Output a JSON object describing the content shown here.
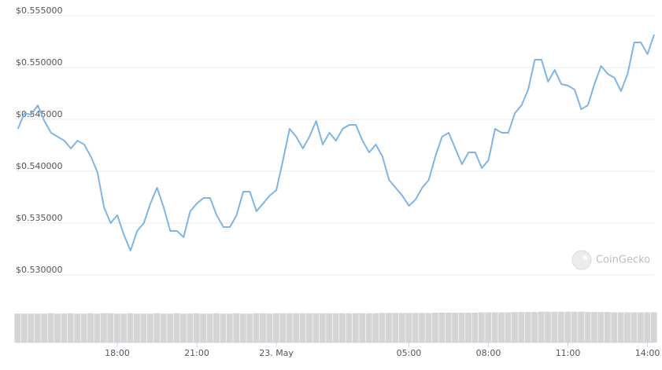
{
  "chart_data": {
    "type": "line",
    "x": [
      "14:15",
      "14:30",
      "14:45",
      "15:00",
      "15:15",
      "15:30",
      "15:45",
      "16:00",
      "16:15",
      "16:30",
      "16:45",
      "17:00",
      "17:15",
      "17:30",
      "17:45",
      "18:00",
      "18:15",
      "18:30",
      "18:45",
      "19:00",
      "19:15",
      "19:30",
      "19:45",
      "20:00",
      "20:15",
      "20:30",
      "20:45",
      "21:00",
      "21:15",
      "21:30",
      "21:45",
      "22:00",
      "22:15",
      "22:30",
      "22:45",
      "23:00",
      "23:15",
      "23:30",
      "23:45",
      "00:00",
      "00:15",
      "00:30",
      "00:45",
      "01:00",
      "01:15",
      "01:30",
      "01:45",
      "02:00",
      "02:15",
      "02:30",
      "02:45",
      "03:00",
      "03:15",
      "03:30",
      "03:45",
      "04:00",
      "04:15",
      "04:30",
      "04:45",
      "05:00",
      "05:15",
      "05:30",
      "05:45",
      "06:00",
      "06:15",
      "06:30",
      "06:45",
      "07:00",
      "07:15",
      "07:30",
      "07:45",
      "08:00",
      "08:15",
      "08:30",
      "08:45",
      "09:00",
      "09:15",
      "09:30",
      "09:45",
      "10:00",
      "10:15",
      "10:30",
      "10:45",
      "11:00",
      "11:15",
      "11:30",
      "11:45",
      "12:00",
      "12:15",
      "12:30",
      "12:45",
      "13:00",
      "13:15",
      "13:30",
      "13:45",
      "14:00",
      "14:15"
    ],
    "series": [
      {
        "color": "#7fb5e6",
        "values": [
          0.54409,
          0.54561,
          0.54545,
          0.54636,
          0.54485,
          0.54371,
          0.54333,
          0.54295,
          0.5422,
          0.54295,
          0.54258,
          0.54144,
          0.53992,
          0.53652,
          0.535,
          0.53576,
          0.53386,
          0.53235,
          0.53424,
          0.535,
          0.53689,
          0.53841,
          0.53652,
          0.53424,
          0.53424,
          0.53364,
          0.53614,
          0.53689,
          0.53742,
          0.53742,
          0.53576,
          0.53462,
          0.53462,
          0.53576,
          0.53803,
          0.53803,
          0.53614,
          0.53689,
          0.53765,
          0.53818,
          0.54106,
          0.54409,
          0.54333,
          0.5422,
          0.54333,
          0.54485,
          0.54258,
          0.54371,
          0.54295,
          0.54409,
          0.54447,
          0.54447,
          0.54295,
          0.54182,
          0.54258,
          0.54144,
          0.53917,
          0.53841,
          0.53765,
          0.53667,
          0.53727,
          0.53841,
          0.53917,
          0.54144,
          0.54333,
          0.54371,
          0.5422,
          0.54068,
          0.54182,
          0.54182,
          0.5403,
          0.54106,
          0.54409,
          0.54371,
          0.54371,
          0.54561,
          0.54636,
          0.54788,
          0.55076,
          0.55076,
          0.54864,
          0.54977,
          0.54841,
          0.54826,
          0.54788,
          0.54598,
          0.54636,
          0.54841,
          0.55015,
          0.54939,
          0.54902,
          0.54773,
          0.54939,
          0.55242,
          0.55242,
          0.55129,
          0.55318
        ]
      }
    ],
    "volume_values": [
      92,
      92,
      92,
      92,
      92,
      93,
      92,
      92,
      93,
      92,
      92,
      93,
      92,
      93,
      93,
      92,
      92,
      93,
      92,
      92,
      92,
      93,
      92,
      92,
      93,
      92,
      92,
      93,
      92,
      92,
      93,
      92,
      92,
      93,
      92,
      92,
      93,
      93,
      92,
      93,
      93,
      93,
      93,
      93,
      93,
      93,
      93,
      93,
      93,
      93,
      93,
      93,
      93,
      93,
      93,
      94,
      94,
      94,
      94,
      94,
      94,
      94,
      94,
      95,
      95,
      95,
      95,
      95,
      95,
      95,
      96,
      96,
      96,
      96,
      96,
      97,
      97,
      97,
      97,
      98,
      98,
      98,
      98,
      98,
      98,
      98,
      97,
      97,
      97,
      97,
      96,
      96,
      96,
      96,
      96,
      96,
      96
    ],
    "volume_ylim": [
      0,
      100
    ],
    "ylim": [
      0.527,
      0.555
    ],
    "yticks": [
      {
        "value": 0.53,
        "label": "$0.530000"
      },
      {
        "value": 0.535,
        "label": "$0.535000"
      },
      {
        "value": 0.54,
        "label": "$0.540000"
      },
      {
        "value": 0.545,
        "label": "$0.545000"
      },
      {
        "value": 0.55,
        "label": "$0.550000"
      },
      {
        "value": 0.555,
        "label": "$0.555000"
      }
    ],
    "xticks": [
      "18:00",
      "21:00",
      {
        "value": "00:00",
        "label": "23. May"
      },
      "05:00",
      "08:00",
      "11:00",
      "14:00"
    ],
    "grid": true,
    "watermark": "CoinGecko"
  }
}
